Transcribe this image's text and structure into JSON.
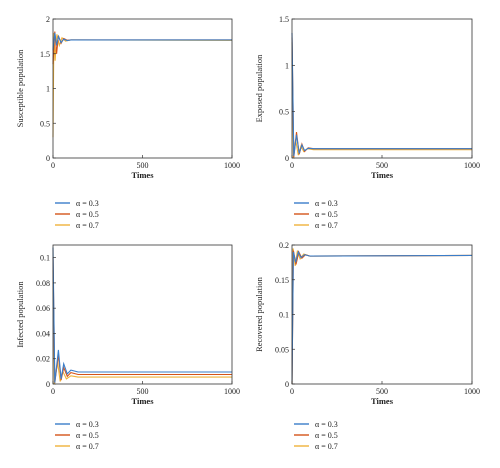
{
  "colors": {
    "a03": "#3a7dc9",
    "a05": "#d4541a",
    "a07": "#f0b23a"
  },
  "chart_data": [
    {
      "type": "line",
      "xlabel": "Times",
      "ylabel": "Susceptible population",
      "xlim": [
        0,
        1000
      ],
      "ylim": [
        0,
        2
      ],
      "xticks": [
        "0",
        "500",
        "1000"
      ],
      "yticks": [
        "0",
        "0.5",
        "1",
        "1.5",
        "2"
      ],
      "legend": [
        "α = 0.3",
        "α = 0.5",
        "α = 0.7"
      ],
      "series": [
        {
          "name": "α = 0.3",
          "color": "#3a7dc9",
          "values": [
            [
              0,
              1.55
            ],
            [
              10,
              1.8
            ],
            [
              20,
              1.62
            ],
            [
              30,
              1.75
            ],
            [
              45,
              1.66
            ],
            [
              60,
              1.71
            ],
            [
              80,
              1.69
            ],
            [
              100,
              1.7
            ],
            [
              1000,
              1.7
            ]
          ]
        },
        {
          "name": "α = 0.5",
          "color": "#d4541a",
          "values": [
            [
              0,
              1.35
            ],
            [
              10,
              1.82
            ],
            [
              20,
              1.5
            ],
            [
              30,
              1.76
            ],
            [
              45,
              1.65
            ],
            [
              60,
              1.72
            ],
            [
              80,
              1.695
            ],
            [
              100,
              1.7
            ],
            [
              1000,
              1.7
            ]
          ]
        },
        {
          "name": "α = 0.7",
          "color": "#f0b23a",
          "values": [
            [
              0,
              0.3
            ],
            [
              5,
              1.8
            ],
            [
              12,
              1.4
            ],
            [
              22,
              1.78
            ],
            [
              35,
              1.62
            ],
            [
              50,
              1.73
            ],
            [
              70,
              1.68
            ],
            [
              100,
              1.7
            ],
            [
              1000,
              1.69
            ]
          ]
        }
      ]
    },
    {
      "type": "line",
      "xlabel": "Times",
      "ylabel": "Exposed population",
      "xlim": [
        0,
        1000
      ],
      "ylim": [
        0,
        1.5
      ],
      "xticks": [
        "0",
        "500",
        "1000"
      ],
      "yticks": [
        "0",
        "0.5",
        "1",
        "1.5"
      ],
      "legend": [
        "α = 0.3",
        "α = 0.5",
        "α = 0.7"
      ],
      "series": [
        {
          "name": "α = 0.3",
          "color": "#3a7dc9",
          "values": [
            [
              0,
              1.35
            ],
            [
              10,
              0.02
            ],
            [
              25,
              0.25
            ],
            [
              40,
              0.05
            ],
            [
              55,
              0.14
            ],
            [
              70,
              0.08
            ],
            [
              90,
              0.105
            ],
            [
              120,
              0.1
            ],
            [
              1000,
              0.1
            ]
          ]
        },
        {
          "name": "α = 0.5",
          "color": "#d4541a",
          "values": [
            [
              0,
              1.3
            ],
            [
              10,
              0.01
            ],
            [
              25,
              0.28
            ],
            [
              40,
              0.04
            ],
            [
              55,
              0.15
            ],
            [
              70,
              0.07
            ],
            [
              90,
              0.11
            ],
            [
              120,
              0.1
            ],
            [
              1000,
              0.1
            ]
          ]
        },
        {
          "name": "α = 0.7",
          "color": "#f0b23a",
          "values": [
            [
              0,
              1.25
            ],
            [
              8,
              0.0
            ],
            [
              20,
              0.2
            ],
            [
              35,
              0.03
            ],
            [
              50,
              0.13
            ],
            [
              65,
              0.07
            ],
            [
              85,
              0.1
            ],
            [
              120,
              0.09
            ],
            [
              1000,
              0.09
            ]
          ]
        }
      ]
    },
    {
      "type": "line",
      "xlabel": "Times",
      "ylabel": "Infected population",
      "xlim": [
        0,
        1000
      ],
      "ylim": [
        0,
        0.11
      ],
      "xticks": [
        "0",
        "500",
        "1000"
      ],
      "yticks": [
        "0",
        "0.02",
        "0.04",
        "0.06",
        "0.08",
        "0.1"
      ],
      "legend": [
        "α = 0.3",
        "α = 0.5",
        "α = 0.7"
      ],
      "series": [
        {
          "name": "α = 0.3",
          "color": "#3a7dc9",
          "values": [
            [
              0,
              0.108
            ],
            [
              10,
              0.001
            ],
            [
              30,
              0.027
            ],
            [
              45,
              0.004
            ],
            [
              60,
              0.016
            ],
            [
              80,
              0.008
            ],
            [
              100,
              0.011
            ],
            [
              140,
              0.0095
            ],
            [
              1000,
              0.0095
            ]
          ]
        },
        {
          "name": "α = 0.5",
          "color": "#d4541a",
          "values": [
            [
              0,
              0.1
            ],
            [
              10,
              0.001
            ],
            [
              30,
              0.023
            ],
            [
              45,
              0.003
            ],
            [
              60,
              0.013
            ],
            [
              80,
              0.006
            ],
            [
              100,
              0.009
            ],
            [
              140,
              0.0075
            ],
            [
              1000,
              0.0075
            ]
          ]
        },
        {
          "name": "α = 0.7",
          "color": "#f0b23a",
          "values": [
            [
              0,
              0.09
            ],
            [
              8,
              0.0
            ],
            [
              25,
              0.018
            ],
            [
              40,
              0.002
            ],
            [
              55,
              0.01
            ],
            [
              75,
              0.004
            ],
            [
              100,
              0.0065
            ],
            [
              140,
              0.0055
            ],
            [
              1000,
              0.0055
            ]
          ]
        }
      ]
    },
    {
      "type": "line",
      "xlabel": "Times",
      "ylabel": "Recovered population",
      "xlim": [
        0,
        1000
      ],
      "ylim": [
        0,
        0.2
      ],
      "xticks": [
        "0",
        "500",
        "1000"
      ],
      "yticks": [
        "0",
        "0.05",
        "0.1",
        "0.15",
        "0.2"
      ],
      "legend": [
        "α = 0.3",
        "α = 0.5",
        "α = 0.7"
      ],
      "series": [
        {
          "name": "α = 0.3",
          "color": "#3a7dc9",
          "values": [
            [
              0,
              0.0
            ],
            [
              8,
              0.19
            ],
            [
              20,
              0.175
            ],
            [
              35,
              0.19
            ],
            [
              50,
              0.182
            ],
            [
              70,
              0.186
            ],
            [
              100,
              0.184
            ],
            [
              1000,
              0.185
            ]
          ]
        },
        {
          "name": "α = 0.5",
          "color": "#d4541a",
          "values": [
            [
              0,
              0.0
            ],
            [
              8,
              0.192
            ],
            [
              22,
              0.172
            ],
            [
              38,
              0.19
            ],
            [
              55,
              0.181
            ],
            [
              75,
              0.186
            ],
            [
              100,
              0.184
            ],
            [
              1000,
              0.185
            ]
          ]
        },
        {
          "name": "α = 0.7",
          "color": "#f0b23a",
          "values": [
            [
              0,
              0.0
            ],
            [
              6,
              0.195
            ],
            [
              18,
              0.17
            ],
            [
              30,
              0.192
            ],
            [
              45,
              0.18
            ],
            [
              65,
              0.187
            ],
            [
              100,
              0.184
            ],
            [
              1000,
              0.185
            ]
          ]
        }
      ]
    }
  ]
}
